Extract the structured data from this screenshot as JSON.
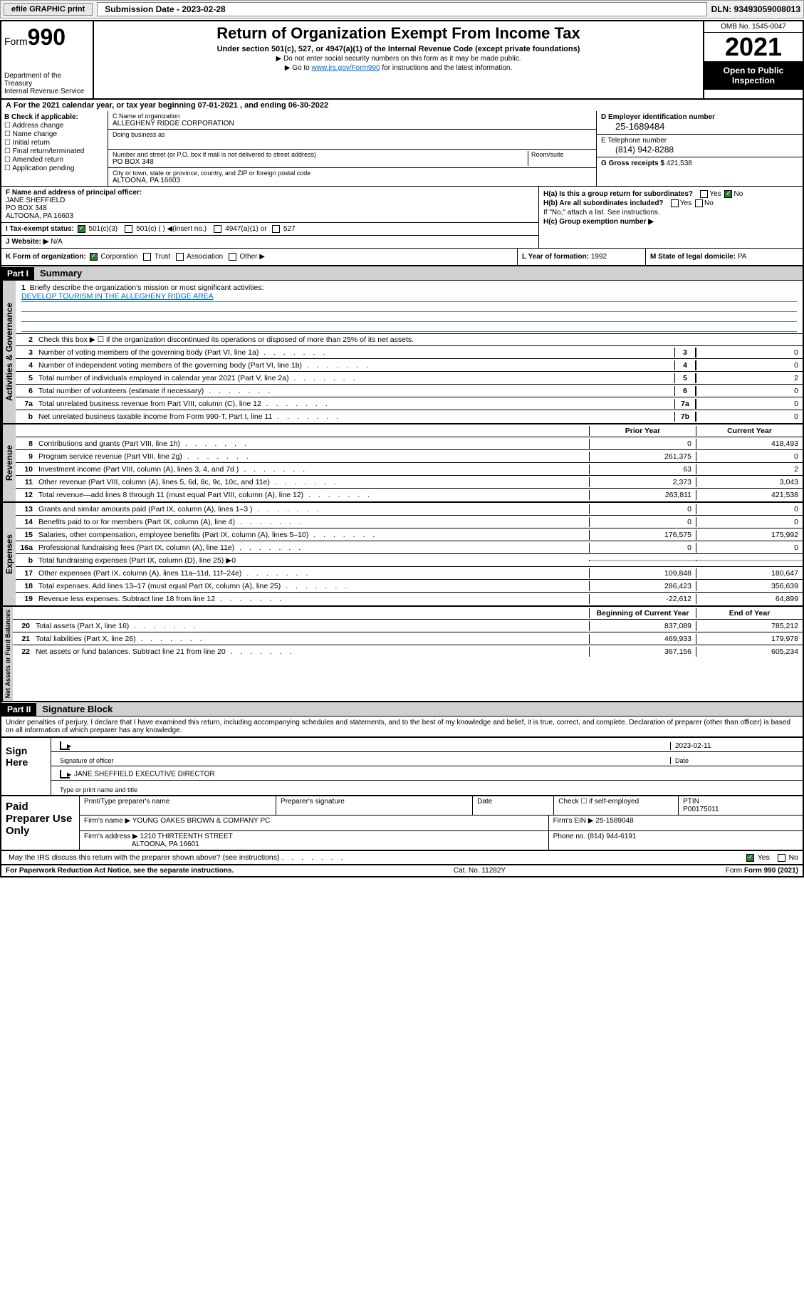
{
  "topbar": {
    "efile": "efile GRAPHIC print",
    "submission_date": "Submission Date - 2023-02-28",
    "dln": "DLN: 93493059008013"
  },
  "header": {
    "form_label": "Form",
    "form_number": "990",
    "dept": "Department of the Treasury",
    "irs": "Internal Revenue Service",
    "title": "Return of Organization Exempt From Income Tax",
    "subtitle": "Under section 501(c), 527, or 4947(a)(1) of the Internal Revenue Code (except private foundations)",
    "note1": "Do not enter social security numbers on this form as it may be made public.",
    "note2_pre": "Go to ",
    "note2_link": "www.irs.gov/Form990",
    "note2_post": " for instructions and the latest information.",
    "omb": "OMB No. 1545-0047",
    "year": "2021",
    "open_public": "Open to Public Inspection"
  },
  "period": {
    "text_pre": "For the 2021 calendar year, or tax year beginning ",
    "begin": "07-01-2021",
    "mid": " , and ending ",
    "end": "06-30-2022"
  },
  "section_b": {
    "label": "B Check if applicable:",
    "opts": [
      "Address change",
      "Name change",
      "Initial return",
      "Final return/terminated",
      "Amended return",
      "Application pending"
    ]
  },
  "section_c": {
    "name_label": "C Name of organization",
    "name": "ALLEGHENY RIDGE CORPORATION",
    "dba_label": "Doing business as",
    "dba": "",
    "addr_label": "Number and street (or P.O. box if mail is not delivered to street address)",
    "room_label": "Room/suite",
    "addr": "PO BOX 348",
    "city_label": "City or town, state or province, country, and ZIP or foreign postal code",
    "city": "ALTOONA, PA  16603"
  },
  "section_d": {
    "ein_label": "D Employer identification number",
    "ein": "25-1689484",
    "tel_label": "E Telephone number",
    "tel": "(814) 942-8288",
    "gross_label": "G Gross receipts $",
    "gross": "421,538"
  },
  "section_f": {
    "label": "F Name and address of principal officer:",
    "name": "JANE SHEFFIELD",
    "addr1": "PO BOX 348",
    "addr2": "ALTOONA, PA  16603"
  },
  "section_h": {
    "ha": "H(a)  Is this a group return for subordinates?",
    "hb": "H(b)  Are all subordinates included?",
    "hb_note": "If \"No,\" attach a list. See instructions.",
    "hc": "H(c)  Group exemption number ▶",
    "yes": "Yes",
    "no": "No"
  },
  "section_i": {
    "label": "I   Tax-exempt status:",
    "opts": [
      "501(c)(3)",
      "501(c) (  ) ◀(insert no.)",
      "4947(a)(1) or",
      "527"
    ]
  },
  "section_j": {
    "label": "J   Website: ▶",
    "value": "N/A"
  },
  "section_k": {
    "label": "K Form of organization:",
    "opts": [
      "Corporation",
      "Trust",
      "Association",
      "Other ▶"
    ]
  },
  "section_l": {
    "label": "L Year of formation:",
    "value": "1992"
  },
  "section_m": {
    "label": "M State of legal domicile:",
    "value": "PA"
  },
  "part1": {
    "header": "Part I",
    "title": "Summary",
    "line1_label": "Briefly describe the organization's mission or most significant activities:",
    "line1_mission": "DEVELOP TOURISM IN THE ALLEGHENY RIDGE AREA",
    "line2": "Check this box ▶ ☐  if the organization discontinued its operations or disposed of more than 25% of its net assets.",
    "rows_gov": [
      {
        "n": "3",
        "d": "Number of voting members of the governing body (Part VI, line 1a)",
        "k": "3",
        "v": "0"
      },
      {
        "n": "4",
        "d": "Number of independent voting members of the governing body (Part VI, line 1b)",
        "k": "4",
        "v": "0"
      },
      {
        "n": "5",
        "d": "Total number of individuals employed in calendar year 2021 (Part V, line 2a)",
        "k": "5",
        "v": "2"
      },
      {
        "n": "6",
        "d": "Total number of volunteers (estimate if necessary)",
        "k": "6",
        "v": "0"
      },
      {
        "n": "7a",
        "d": "Total unrelated business revenue from Part VIII, column (C), line 12",
        "k": "7a",
        "v": "0"
      },
      {
        "n": "b",
        "d": "Net unrelated business taxable income from Form 990-T, Part I, line 11",
        "k": "7b",
        "v": "0"
      }
    ],
    "col_headers": {
      "prior": "Prior Year",
      "current": "Current Year",
      "boy": "Beginning of Current Year",
      "eoy": "End of Year"
    },
    "rows_rev": [
      {
        "n": "8",
        "d": "Contributions and grants (Part VIII, line 1h)",
        "p": "0",
        "c": "418,493"
      },
      {
        "n": "9",
        "d": "Program service revenue (Part VIII, line 2g)",
        "p": "261,375",
        "c": "0"
      },
      {
        "n": "10",
        "d": "Investment income (Part VIII, column (A), lines 3, 4, and 7d )",
        "p": "63",
        "c": "2"
      },
      {
        "n": "11",
        "d": "Other revenue (Part VIII, column (A), lines 5, 6d, 8c, 9c, 10c, and 11e)",
        "p": "2,373",
        "c": "3,043"
      },
      {
        "n": "12",
        "d": "Total revenue—add lines 8 through 11 (must equal Part VIII, column (A), line 12)",
        "p": "263,811",
        "c": "421,538"
      }
    ],
    "rows_exp": [
      {
        "n": "13",
        "d": "Grants and similar amounts paid (Part IX, column (A), lines 1–3 )",
        "p": "0",
        "c": "0"
      },
      {
        "n": "14",
        "d": "Benefits paid to or for members (Part IX, column (A), line 4)",
        "p": "0",
        "c": "0"
      },
      {
        "n": "15",
        "d": "Salaries, other compensation, employee benefits (Part IX, column (A), lines 5–10)",
        "p": "176,575",
        "c": "175,992"
      },
      {
        "n": "16a",
        "d": "Professional fundraising fees (Part IX, column (A), line 11e)",
        "p": "0",
        "c": "0"
      },
      {
        "n": "b",
        "d": "Total fundraising expenses (Part IX, column (D), line 25) ▶0",
        "p": "",
        "c": "",
        "shaded": true
      },
      {
        "n": "17",
        "d": "Other expenses (Part IX, column (A), lines 11a–11d, 11f–24e)",
        "p": "109,848",
        "c": "180,647"
      },
      {
        "n": "18",
        "d": "Total expenses. Add lines 13–17 (must equal Part IX, column (A), line 25)",
        "p": "286,423",
        "c": "356,639"
      },
      {
        "n": "19",
        "d": "Revenue less expenses. Subtract line 18 from line 12",
        "p": "-22,612",
        "c": "64,899"
      }
    ],
    "rows_net": [
      {
        "n": "20",
        "d": "Total assets (Part X, line 16)",
        "p": "837,089",
        "c": "785,212"
      },
      {
        "n": "21",
        "d": "Total liabilities (Part X, line 26)",
        "p": "469,933",
        "c": "179,978"
      },
      {
        "n": "22",
        "d": "Net assets or fund balances. Subtract line 21 from line 20",
        "p": "367,156",
        "c": "605,234"
      }
    ],
    "side_labels": {
      "gov": "Activities & Governance",
      "rev": "Revenue",
      "exp": "Expenses",
      "net": "Net Assets or Fund Balances"
    }
  },
  "part2": {
    "header": "Part II",
    "title": "Signature Block",
    "declare": "Under penalties of perjury, I declare that I have examined this return, including accompanying schedules and statements, and to the best of my knowledge and belief, it is true, correct, and complete. Declaration of preparer (other than officer) is based on all information of which preparer has any knowledge.",
    "sign_here": "Sign Here",
    "sig_officer": "Signature of officer",
    "sig_date": "Date",
    "sig_date_val": "2023-02-11",
    "sig_name_title": "JANE SHEFFIELD  EXECUTIVE DIRECTOR",
    "sig_type_label": "Type or print name and title",
    "paid_label": "Paid Preparer Use Only",
    "prep_name_label": "Print/Type preparer's name",
    "prep_sig_label": "Preparer's signature",
    "prep_date_label": "Date",
    "prep_check": "Check ☐ if self-employed",
    "ptin_label": "PTIN",
    "ptin": "P00175011",
    "firm_name_label": "Firm's name    ▶",
    "firm_name": "YOUNG OAKES BROWN & COMPANY PC",
    "firm_ein_label": "Firm's EIN ▶",
    "firm_ein": "25-1589048",
    "firm_addr_label": "Firm's address ▶",
    "firm_addr1": "1210 THIRTEENTH STREET",
    "firm_addr2": "ALTOONA, PA  16601",
    "firm_phone_label": "Phone no.",
    "firm_phone": "(814) 944-6191",
    "discuss": "May the IRS discuss this return with the preparer shown above? (see instructions)",
    "yes": "Yes",
    "no": "No"
  },
  "footer": {
    "paperwork": "For Paperwork Reduction Act Notice, see the separate instructions.",
    "cat": "Cat. No. 11282Y",
    "form": "Form 990 (2021)"
  },
  "colors": {
    "link": "#0066cc",
    "check_green": "#2e7d32",
    "shade": "#c0c0c0",
    "part_bg": "#d0d0d0"
  }
}
